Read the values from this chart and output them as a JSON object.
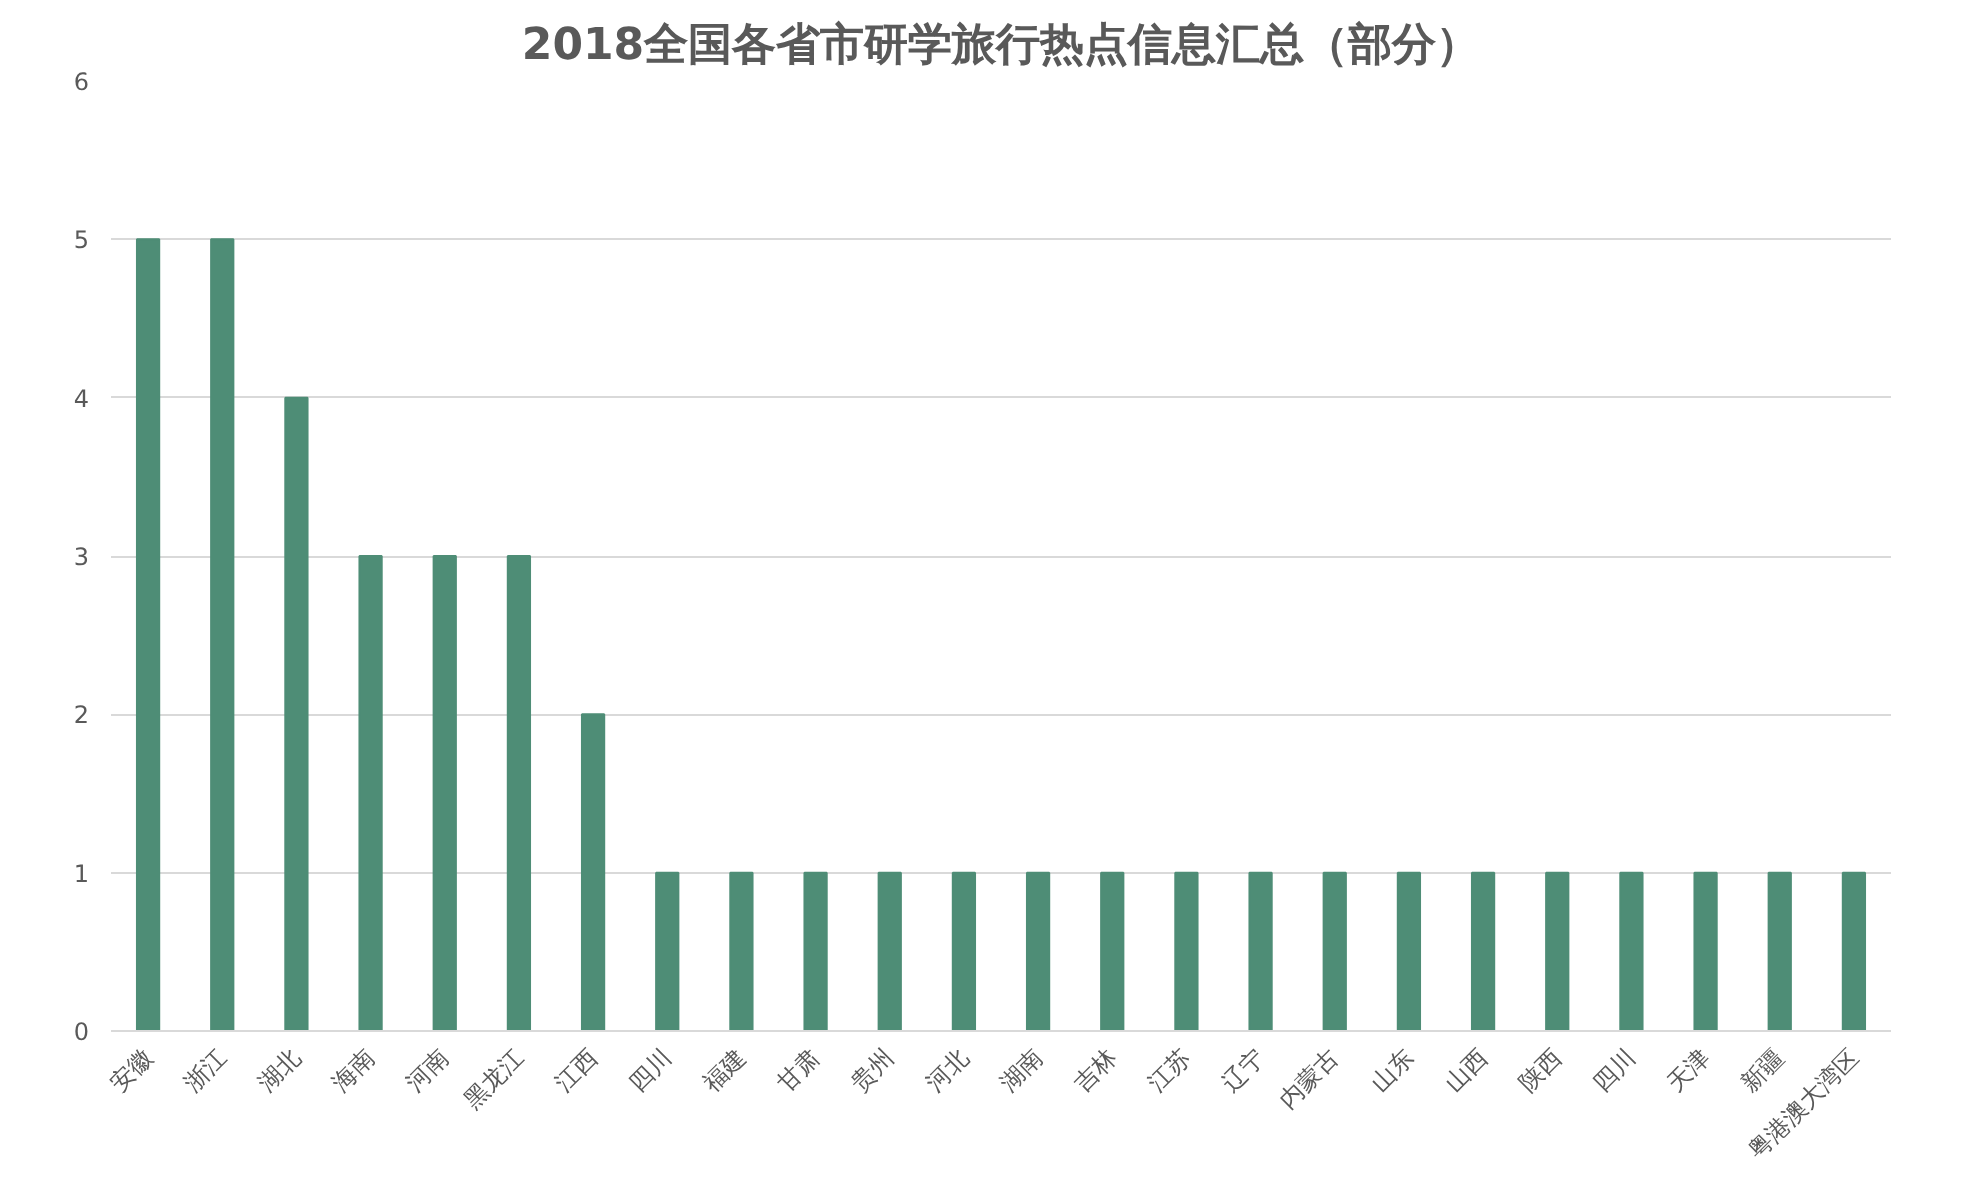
{
  "chart_data": {
    "type": "bar",
    "title": "2018全国各省市研学旅行热点信息汇总（部分）",
    "categories": [
      "安徽",
      "浙江",
      "湖北",
      "海南",
      "河南",
      "黑龙江",
      "江西",
      "四川",
      "福建",
      "甘肃",
      "贵州",
      "河北",
      "湖南",
      "吉林",
      "江苏",
      "辽宁",
      "内蒙古",
      "山东",
      "山西",
      "陕西",
      "四川",
      "天津",
      "新疆",
      "粤港澳大湾区"
    ],
    "values": [
      5,
      5,
      4,
      3,
      3,
      3,
      2,
      1,
      1,
      1,
      1,
      1,
      1,
      1,
      1,
      1,
      1,
      1,
      1,
      1,
      1,
      1,
      1,
      1
    ],
    "color": "#4e8d76",
    "ylim": [
      0,
      6
    ],
    "yticks": [
      0,
      1,
      2,
      3,
      4,
      5,
      6
    ],
    "grid": "y"
  }
}
